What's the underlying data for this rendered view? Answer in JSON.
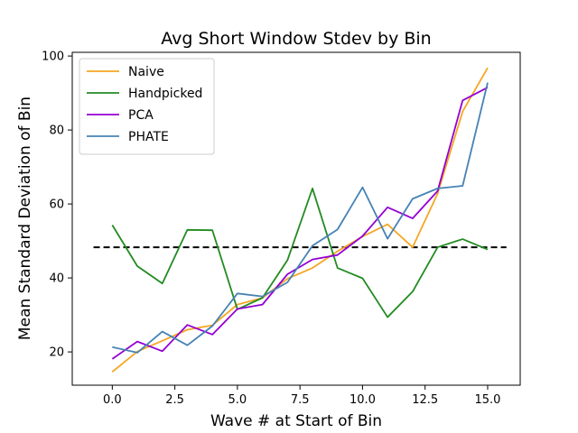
{
  "chart_data": {
    "type": "line",
    "title": "Avg Short Window Stdev by Bin",
    "xlabel": "Wave # at Start of Bin",
    "ylabel": "Mean Standard Deviation of Bin",
    "xlim": [
      -1.6,
      16.3
    ],
    "ylim": [
      11,
      101
    ],
    "xticks": [
      0.0,
      2.5,
      5.0,
      7.5,
      10.0,
      12.5,
      15.0
    ],
    "xtick_labels": [
      "0.0",
      "2.5",
      "5.0",
      "7.5",
      "10.0",
      "12.5",
      "15.0"
    ],
    "yticks": [
      20,
      40,
      60,
      80,
      100
    ],
    "ytick_labels": [
      "20",
      "40",
      "60",
      "80",
      "100"
    ],
    "grid": false,
    "legend_position": "top-left",
    "x": [
      0,
      1,
      2,
      3,
      4,
      5,
      6,
      7,
      8,
      9,
      10,
      11,
      12,
      13,
      14,
      15
    ],
    "series": [
      {
        "name": "Naive",
        "color": "#f5a623",
        "values": [
          14.6,
          20.1,
          23.0,
          26.0,
          27.2,
          32.8,
          34.6,
          39.8,
          42.7,
          47.2,
          51.2,
          54.5,
          48.3,
          62.8,
          85.0,
          96.8
        ]
      },
      {
        "name": "Handpicked",
        "color": "#228b22",
        "values": [
          54.3,
          43.2,
          38.5,
          53.0,
          52.9,
          31.5,
          34.6,
          44.8,
          64.2,
          42.7,
          39.9,
          29.4,
          36.3,
          48.3,
          50.5,
          47.7
        ]
      },
      {
        "name": "PCA",
        "color": "#9400d3",
        "values": [
          18.1,
          22.8,
          20.2,
          27.3,
          24.7,
          31.6,
          32.8,
          41.0,
          45.0,
          46.2,
          51.3,
          59.1,
          56.1,
          63.5,
          88.0,
          91.5
        ]
      },
      {
        "name": "PHATE",
        "color": "#4682b4",
        "values": [
          21.3,
          19.8,
          25.5,
          21.8,
          27.0,
          35.8,
          35.0,
          38.8,
          48.7,
          53.1,
          64.5,
          50.6,
          61.4,
          64.2,
          64.9,
          92.8
        ]
      }
    ],
    "reference_line": {
      "y": 48.3,
      "x_range": [
        -0.75,
        15.75
      ],
      "style": "dashed",
      "color": "#000000"
    }
  }
}
